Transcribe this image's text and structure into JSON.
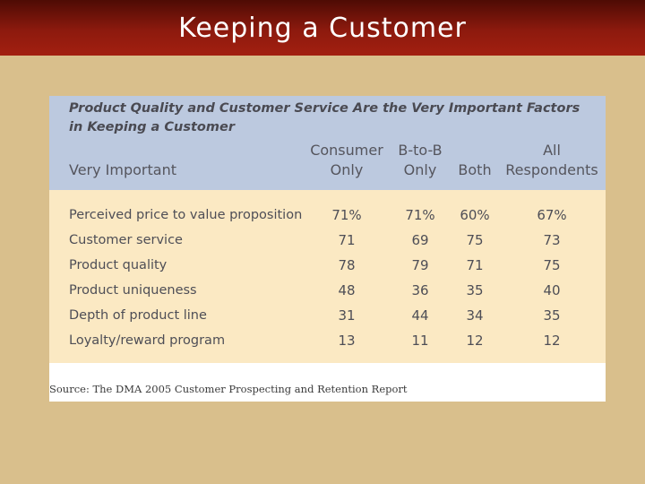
{
  "slide": {
    "title": "Keeping a Customer"
  },
  "table": {
    "caption": "Product Quality and Customer Service Are the Very Important Factors in Keeping a Customer",
    "row_header": "Very Important",
    "columns": [
      {
        "line1": "Consumer",
        "line2": "Only"
      },
      {
        "line1": "B-to-B",
        "line2": "Only"
      },
      {
        "line1": "",
        "line2": "Both"
      },
      {
        "line1": "All",
        "line2": "Respondents"
      }
    ],
    "rows": [
      {
        "label": "Perceived price to value proposition",
        "values": [
          "71%",
          "71%",
          "60%",
          "67%"
        ]
      },
      {
        "label": "Customer service",
        "values": [
          "71",
          "69",
          "75",
          "73"
        ]
      },
      {
        "label": "Product quality",
        "values": [
          "78",
          "79",
          "71",
          "75"
        ]
      },
      {
        "label": "Product uniqueness",
        "values": [
          "48",
          "36",
          "35",
          "40"
        ]
      },
      {
        "label": "Depth of product line",
        "values": [
          "31",
          "44",
          "34",
          "35"
        ]
      },
      {
        "label": "Loyalty/reward program",
        "values": [
          "13",
          "11",
          "12",
          "12"
        ]
      }
    ],
    "source": "Source: The DMA 2005 Customer Prospecting and Retention Report"
  },
  "colors": {
    "title_bar": "#8d1a0e",
    "background": "#d9bf8c",
    "header_fill": "#bcc9df",
    "body_fill": "#fbe9c3"
  }
}
